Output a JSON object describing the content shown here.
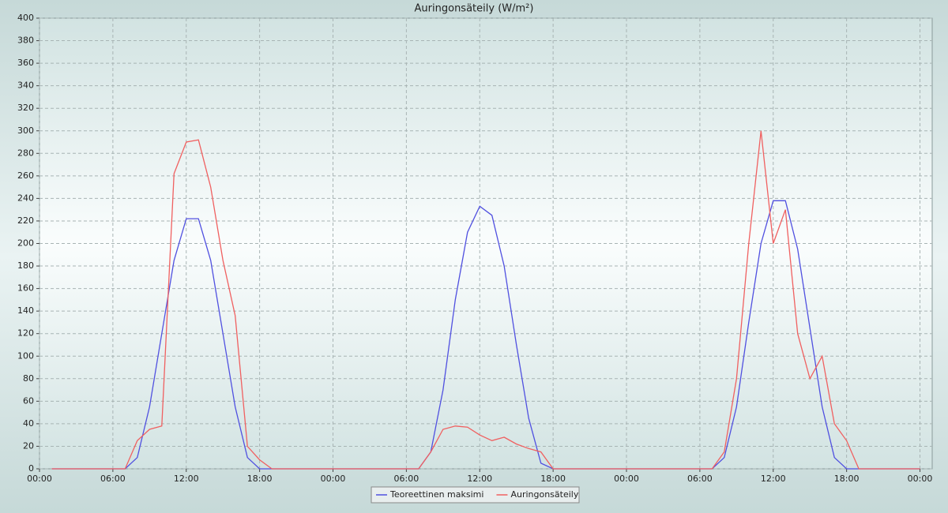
{
  "chart_data": {
    "type": "line",
    "title": "Auringonsäteily (W/m²)",
    "x": [
      1,
      2,
      3,
      4,
      5,
      6,
      7,
      8,
      9,
      10,
      11,
      12,
      13,
      14,
      15,
      16,
      17,
      18,
      19,
      20,
      21,
      22,
      23,
      24,
      25,
      26,
      27,
      28,
      29,
      30,
      31,
      32,
      33,
      34,
      35,
      36,
      37,
      38,
      39,
      40,
      41,
      42,
      43,
      44,
      45,
      46,
      47,
      48,
      49,
      50,
      51,
      52,
      53,
      54,
      55,
      56,
      57,
      58,
      59,
      60,
      61,
      62,
      63,
      64,
      65,
      66,
      67,
      68,
      69,
      70,
      71,
      72
    ],
    "series": [
      {
        "name": "Teoreettinen maksimi",
        "color": "#5050e0",
        "values": [
          0,
          0,
          0,
          0,
          0,
          0,
          0,
          10,
          55,
          120,
          185,
          222,
          222,
          185,
          120,
          55,
          10,
          0,
          0,
          0,
          0,
          0,
          0,
          0,
          0,
          0,
          0,
          0,
          0,
          0,
          0,
          15,
          70,
          150,
          210,
          233,
          225,
          180,
          110,
          45,
          5,
          0,
          0,
          0,
          0,
          0,
          0,
          0,
          0,
          0,
          0,
          0,
          0,
          0,
          0,
          10,
          55,
          130,
          200,
          238,
          238,
          195,
          125,
          55,
          10,
          0,
          0,
          0,
          0,
          0,
          0,
          0
        ]
      },
      {
        "name": "Auringonsäteily",
        "color": "#f06060",
        "values": [
          0,
          0,
          0,
          0,
          0,
          0,
          0,
          25,
          35,
          38,
          262,
          290,
          292,
          250,
          185,
          136,
          20,
          8,
          0,
          0,
          0,
          0,
          0,
          0,
          0,
          0,
          0,
          0,
          0,
          0,
          0,
          15,
          35,
          38,
          37,
          30,
          25,
          28,
          22,
          18,
          15,
          0,
          0,
          0,
          0,
          0,
          0,
          0,
          0,
          0,
          0,
          0,
          0,
          0,
          0,
          15,
          80,
          200,
          300,
          200,
          230,
          120,
          80,
          100,
          40,
          25,
          0,
          0,
          0,
          0,
          0,
          0
        ]
      }
    ],
    "xlim": [
      0,
      73
    ],
    "xticks": [
      {
        "value": 0,
        "label": "00:00"
      },
      {
        "value": 6,
        "label": "06:00"
      },
      {
        "value": 12,
        "label": "12:00"
      },
      {
        "value": 18,
        "label": "18:00"
      },
      {
        "value": 24,
        "label": "00:00"
      },
      {
        "value": 30,
        "label": "06:00"
      },
      {
        "value": 36,
        "label": "12:00"
      },
      {
        "value": 42,
        "label": "18:00"
      },
      {
        "value": 48,
        "label": "00:00"
      },
      {
        "value": 54,
        "label": "06:00"
      },
      {
        "value": 60,
        "label": "12:00"
      },
      {
        "value": 66,
        "label": "18:00"
      },
      {
        "value": 72,
        "label": "00:00"
      }
    ],
    "ylim": [
      0,
      400
    ],
    "yticks": [
      0,
      20,
      40,
      60,
      80,
      100,
      120,
      140,
      160,
      180,
      200,
      220,
      240,
      260,
      280,
      300,
      320,
      340,
      360,
      380,
      400
    ],
    "grid": true,
    "legend": "bottom"
  }
}
